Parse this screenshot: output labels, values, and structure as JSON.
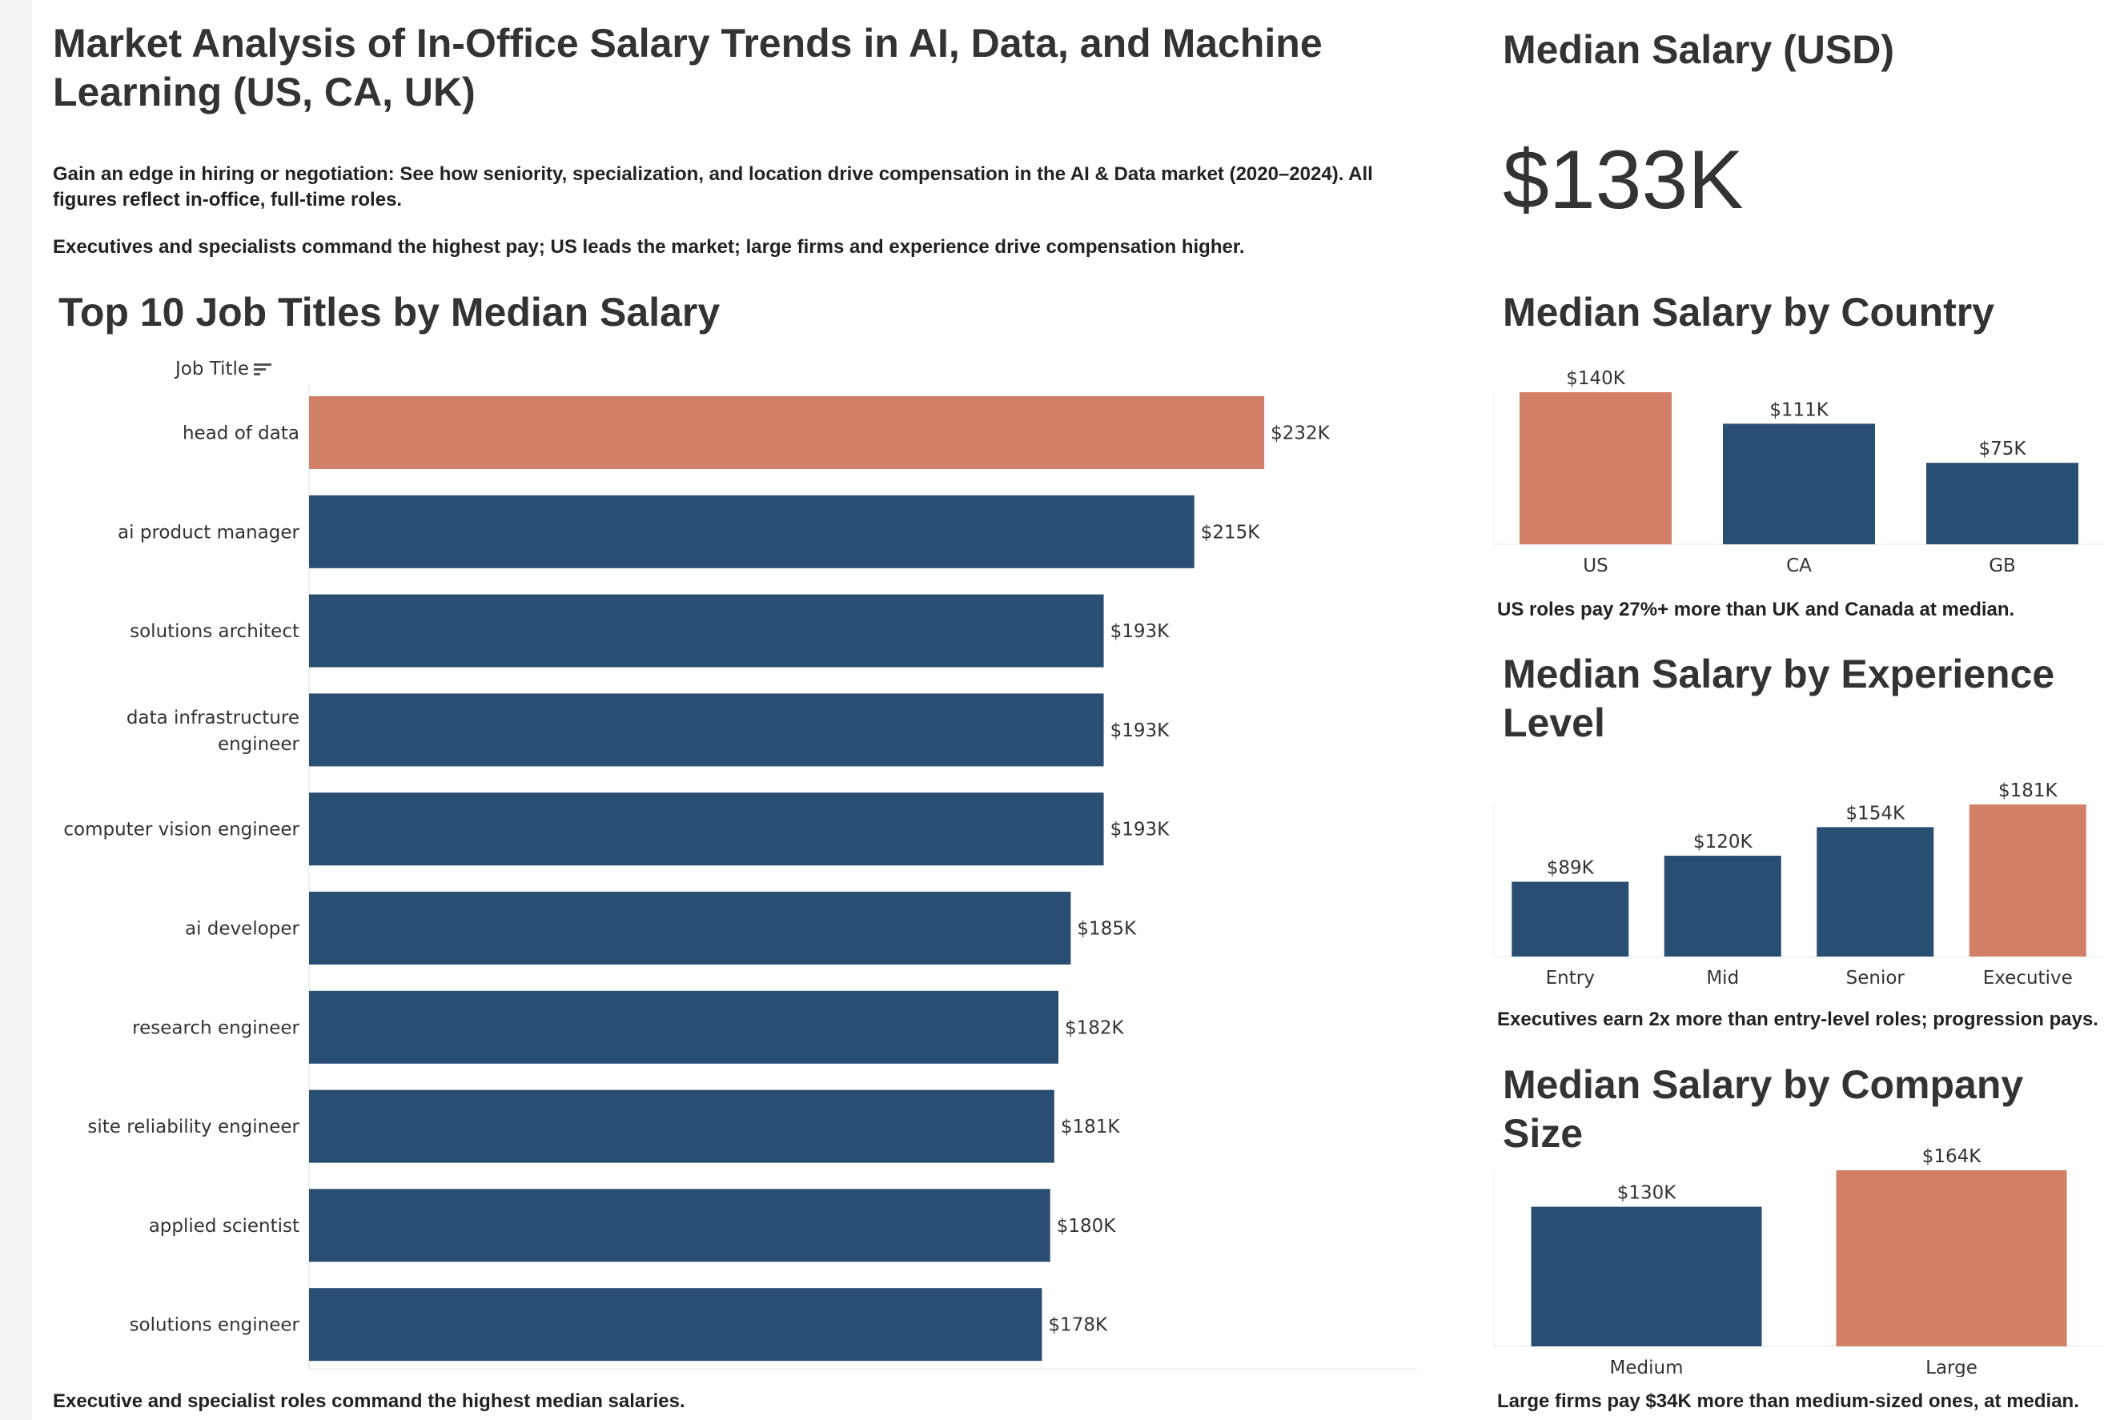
{
  "dashboard": {
    "title": "Market Analysis of In-Office Salary Trends in AI, Data, and Machine Learning (US, CA, UK)",
    "intro": "Gain an edge in hiring or negotiation: See how seniority, specialization, and location drive compensation in the AI & Data market (2020–2024). All figures reflect in-office, full-time roles.",
    "summary": "Executives and specialists command the highest pay; US leads the market; large firms and experience drive compensation higher."
  },
  "kpi": {
    "title": "Median Salary (USD)",
    "value": "$133K"
  },
  "job_titles": {
    "title": "Top 10 Job Titles by Median Salary",
    "axis_header": "Job Title",
    "note": "Executive and specialist roles command the highest median salaries."
  },
  "country": {
    "title": "Median Salary by Country",
    "note": "US roles pay 27%+ more than UK and Canada at median."
  },
  "experience": {
    "title": "Median Salary by Experience Level",
    "note": "Executives earn 2x more than entry-level roles; progression pays."
  },
  "company": {
    "title": "Median Salary by Company Size",
    "note": "Large firms pay $34K more than medium-sized ones, at median."
  },
  "colors": {
    "primary": "#284e72",
    "highlight": "#d17f66"
  },
  "chart_data": [
    {
      "type": "bar",
      "orientation": "horizontal",
      "title": "Top 10 Job Titles by Median Salary",
      "categories": [
        "head of data",
        "ai product manager",
        "solutions architect",
        "data infrastructure engineer",
        "computer vision engineer",
        "ai developer",
        "research engineer",
        "site reliability engineer",
        "applied scientist",
        "solutions engineer"
      ],
      "values": [
        232,
        215,
        193,
        193,
        193,
        185,
        182,
        181,
        180,
        178
      ],
      "labels": [
        "$232K",
        "$215K",
        "$193K",
        "$193K",
        "$193K",
        "$185K",
        "$182K",
        "$181K",
        "$180K",
        "$178K"
      ],
      "highlight": [
        0
      ],
      "unit": "$K"
    },
    {
      "type": "bar",
      "title": "Median Salary by Country",
      "categories": [
        "US",
        "CA",
        "GB"
      ],
      "values": [
        140,
        111,
        75
      ],
      "labels": [
        "$140K",
        "$111K",
        "$75K"
      ],
      "highlight": [
        0
      ],
      "unit": "$K"
    },
    {
      "type": "bar",
      "title": "Median Salary by Experience Level",
      "categories": [
        "Entry",
        "Mid",
        "Senior",
        "Executive"
      ],
      "values": [
        89,
        120,
        154,
        181
      ],
      "labels": [
        "$89K",
        "$120K",
        "$154K",
        "$181K"
      ],
      "highlight": [
        3
      ],
      "unit": "$K"
    },
    {
      "type": "bar",
      "title": "Median Salary by Company Size",
      "categories": [
        "Medium",
        "Large"
      ],
      "values": [
        130,
        164
      ],
      "labels": [
        "$130K",
        "$164K"
      ],
      "highlight": [
        1
      ],
      "unit": "$K"
    }
  ]
}
